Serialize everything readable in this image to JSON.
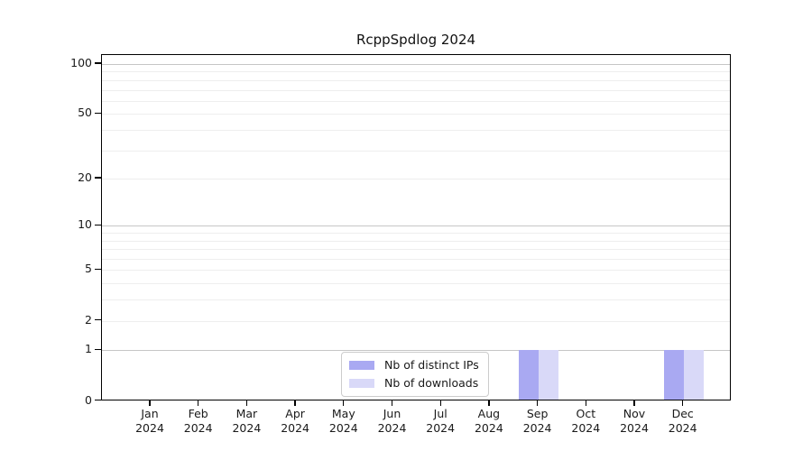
{
  "figure": {
    "title": "RcppSpdlog 2024"
  },
  "chart_data": {
    "type": "bar",
    "title": "RcppSpdlog 2024",
    "x_categories": [
      "Jan",
      "Feb",
      "Mar",
      "Apr",
      "May",
      "Jun",
      "Jul",
      "Aug",
      "Sep",
      "Oct",
      "Nov",
      "Dec"
    ],
    "x_year_label": "2024",
    "series": [
      {
        "name": "Nb of distinct IPs",
        "color": "#a9a9f2",
        "values": [
          0,
          0,
          0,
          0,
          0,
          0,
          0,
          0,
          1,
          0,
          0,
          1
        ]
      },
      {
        "name": "Nb of downloads",
        "color": "#d9d9f8",
        "values": [
          0,
          0,
          0,
          0,
          0,
          0,
          0,
          0,
          1,
          0,
          0,
          1
        ]
      }
    ],
    "y_scale": "log1p",
    "ylim": [
      0,
      114
    ],
    "y_ticks": [
      0,
      1,
      2,
      5,
      10,
      20,
      50,
      100
    ],
    "y_major_gridlines": [
      1,
      10,
      100
    ],
    "y_minor_gridlines": [
      2,
      3,
      4,
      5,
      6,
      7,
      8,
      9,
      20,
      30,
      40,
      50,
      60,
      70,
      80,
      90
    ],
    "grid": true,
    "legend_position": "lower-center-inside",
    "colors": {
      "axis": "#000000",
      "text": "#1a1a1a",
      "major_grid": "#c6c6c6",
      "minor_grid": "#eeeeee",
      "legend_border": "#cccccc",
      "background": "#ffffff"
    }
  }
}
